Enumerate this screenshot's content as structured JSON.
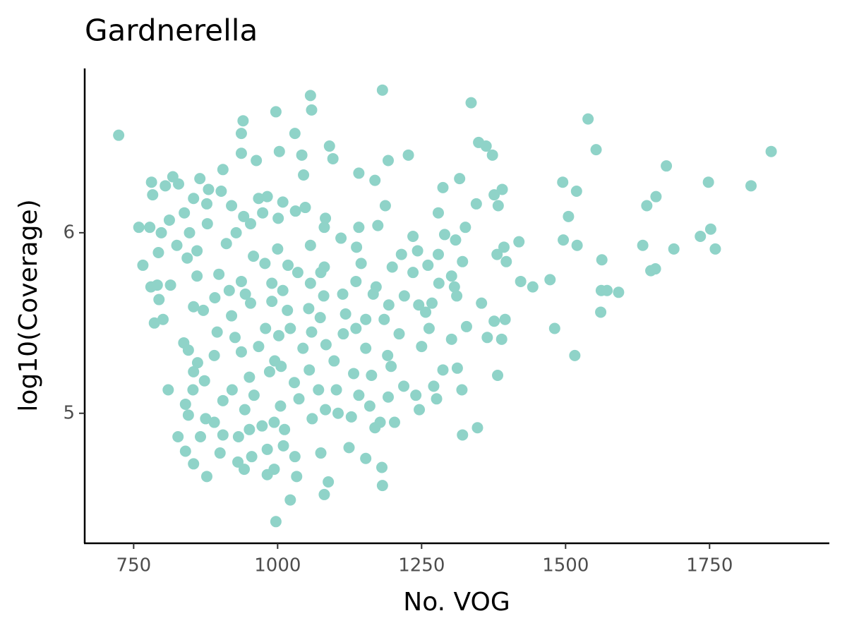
{
  "chart_data": {
    "type": "scatter",
    "title": "Gardnerella",
    "x_label": "No. VOG",
    "y_label": "log10(Coverage)",
    "xlim": [
      665,
      1958
    ],
    "ylim": [
      4.28,
      6.91
    ],
    "xticks": [
      750,
      1000,
      1250,
      1500,
      1750
    ],
    "yticks": [
      5,
      6
    ],
    "grid": false,
    "series": [
      {
        "color": "#8fd3c8",
        "x": [
          724,
          1057,
          1182,
          1336,
          1539,
          997,
          940,
          1059,
          1030,
          937,
          1090,
          1003,
          1349,
          1362,
          1553,
          1857,
          1096,
          1042,
          1227,
          1373,
          937,
          963,
          1192,
          1675,
          905,
          1045,
          1141,
          818,
          865,
          781,
          1316,
          1495,
          1748,
          1822,
          1169,
          1287,
          1390,
          1519,
          1657,
          1376,
          783,
          805,
          828,
          880,
          902,
          967,
          982,
          854,
          1009,
          1345,
          1383,
          1641,
          1187,
          1048,
          1031,
          920,
          877,
          838,
          974,
          1279,
          1505,
          1001,
          941,
          1083,
          953,
          812,
          878,
          1141,
          1174,
          1326,
          759,
          778,
          1752,
          1081,
          928,
          798,
          847,
          1110,
          1235,
          1290,
          1734,
          1309,
          1496,
          1634,
          1520,
          1419,
          1688,
          1760,
          1393,
          911,
          825,
          1057,
          1137,
          1243,
          860,
          793,
          1000,
          958,
          1279,
          1215,
          1381,
          1397,
          1563,
          1321,
          1145,
          1261,
          766,
          843,
          1081,
          978,
          1018,
          1199,
          1656,
          1648,
          1235,
          898,
          1035,
          1075,
          1302,
          1473,
          1422,
          860,
          937,
          1136,
          1443,
          780,
          814,
          791,
          990,
          1057,
          1280,
          1307,
          1171,
          1562,
          1572,
          1592,
          1009,
          916,
          1113,
          1166,
          1311,
          1220,
          891,
          944,
          794,
          1080,
          990,
          1268,
          1354,
          854,
          953,
          1054,
          1245,
          1193,
          1561,
          1257,
          871,
          1017,
          1118,
          920,
          1153,
          1395,
          1376,
          1185,
          1074,
          786,
          801,
          1328,
          979,
          1022,
          1481,
          1136,
          1364,
          1389,
          1263,
          1302,
          1211,
          1114,
          895,
          926,
          1059,
          1002,
          837,
          845,
          1250,
          1153,
          1084,
          967,
          1044,
          937,
          1516,
          890,
          1098,
          995,
          1191,
          861,
          1006,
          1197,
          1312,
          1287,
          1132,
          854,
          1382,
          1163,
          1055,
          951,
          986,
          873,
          1029,
          1219,
          1271,
          1320,
          810,
          853,
          1102,
          1071,
          921,
          959,
          1141,
          1240,
          1276,
          1192,
          1037,
          905,
          840,
          1160,
          1005,
          943,
          1246,
          1083,
          1105,
          845,
          1128,
          875,
          1060,
          890,
          1203,
          1178,
          994,
          1169,
          1347,
          951,
          1012,
          973,
          1321,
          827,
          866,
          905,
          932,
          1010,
          1124,
          840,
          982,
          900,
          1075,
          1030,
          955,
          1153,
          854,
          931,
          994,
          1181,
          942,
          877,
          1033,
          1088,
          982,
          1182,
          1081,
          1022,
          997
        ],
        "values": [
          6.54,
          6.76,
          6.79,
          6.72,
          6.63,
          6.67,
          6.62,
          6.68,
          6.55,
          6.55,
          6.48,
          6.45,
          6.5,
          6.48,
          6.46,
          6.45,
          6.41,
          6.43,
          6.43,
          6.43,
          6.44,
          6.4,
          6.4,
          6.37,
          6.35,
          6.32,
          6.33,
          6.31,
          6.3,
          6.28,
          6.3,
          6.28,
          6.28,
          6.26,
          6.29,
          6.25,
          6.24,
          6.23,
          6.2,
          6.21,
          6.21,
          6.26,
          6.27,
          6.24,
          6.23,
          6.19,
          6.2,
          6.19,
          6.17,
          6.16,
          6.15,
          6.15,
          6.15,
          6.14,
          6.12,
          6.15,
          6.16,
          6.11,
          6.11,
          6.11,
          6.09,
          6.08,
          6.09,
          6.08,
          6.05,
          6.07,
          6.05,
          6.03,
          6.04,
          6.03,
          6.03,
          6.03,
          6.02,
          6.03,
          6.0,
          6.0,
          6.0,
          5.97,
          5.98,
          5.99,
          5.98,
          5.96,
          5.96,
          5.93,
          5.93,
          5.95,
          5.91,
          5.91,
          5.92,
          5.94,
          5.93,
          5.93,
          5.92,
          5.9,
          5.9,
          5.89,
          5.91,
          5.87,
          5.88,
          5.88,
          5.88,
          5.84,
          5.85,
          5.84,
          5.83,
          5.82,
          5.82,
          5.86,
          5.81,
          5.83,
          5.82,
          5.81,
          5.8,
          5.79,
          5.78,
          5.77,
          5.78,
          5.78,
          5.76,
          5.74,
          5.73,
          5.76,
          5.73,
          5.73,
          5.7,
          5.7,
          5.71,
          5.71,
          5.72,
          5.72,
          5.72,
          5.7,
          5.7,
          5.68,
          5.68,
          5.67,
          5.68,
          5.68,
          5.66,
          5.66,
          5.65,
          5.65,
          5.64,
          5.66,
          5.63,
          5.65,
          5.62,
          5.61,
          5.61,
          5.59,
          5.61,
          5.58,
          5.6,
          5.6,
          5.56,
          5.56,
          5.57,
          5.57,
          5.55,
          5.54,
          5.52,
          5.52,
          5.51,
          5.52,
          5.53,
          5.5,
          5.52,
          5.48,
          5.47,
          5.47,
          5.47,
          5.47,
          5.42,
          5.41,
          5.47,
          5.41,
          5.44,
          5.44,
          5.45,
          5.42,
          5.45,
          5.43,
          5.39,
          5.35,
          5.37,
          5.36,
          5.38,
          5.37,
          5.36,
          5.34,
          5.32,
          5.32,
          5.29,
          5.29,
          5.32,
          5.28,
          5.26,
          5.26,
          5.25,
          5.24,
          5.22,
          5.23,
          5.21,
          5.21,
          5.24,
          5.2,
          5.23,
          5.18,
          5.17,
          5.15,
          5.15,
          5.13,
          5.13,
          5.13,
          5.13,
          5.13,
          5.13,
          5.1,
          5.1,
          5.1,
          5.08,
          5.09,
          5.08,
          5.07,
          5.05,
          5.04,
          5.04,
          5.02,
          5.02,
          5.02,
          5.0,
          4.99,
          4.98,
          4.97,
          4.97,
          4.95,
          4.95,
          4.95,
          4.95,
          4.92,
          4.92,
          4.91,
          4.91,
          4.93,
          4.88,
          4.87,
          4.87,
          4.88,
          4.87,
          4.82,
          4.81,
          4.79,
          4.8,
          4.78,
          4.78,
          4.76,
          4.76,
          4.75,
          4.72,
          4.73,
          4.69,
          4.7,
          4.69,
          4.65,
          4.65,
          4.62,
          4.66,
          4.6,
          4.55,
          4.52,
          4.4
        ]
      }
    ]
  }
}
